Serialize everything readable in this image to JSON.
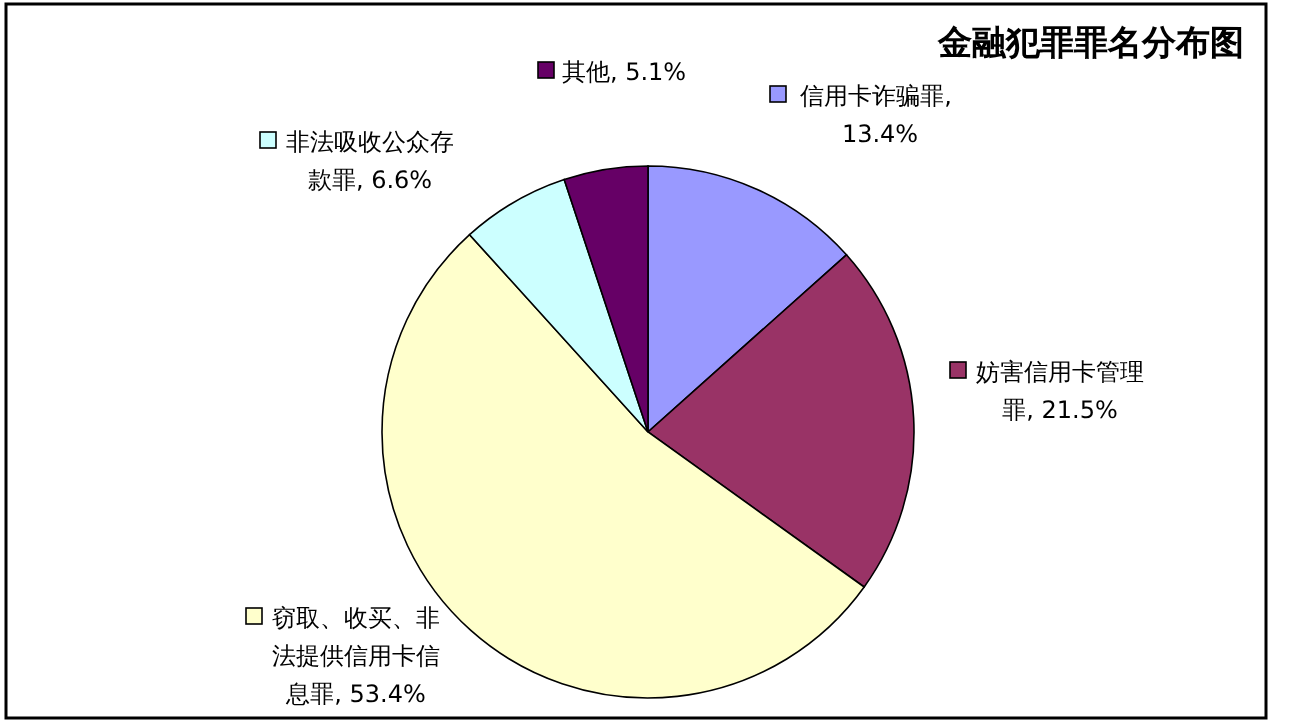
{
  "chart_data": {
    "type": "pie",
    "title": "金融犯罪罪名分布图",
    "categories": [
      "信用卡诈骗罪",
      "妨害信用卡管理罪",
      "窃取、收买、非法提供信用卡信息罪",
      "非法吸收公众存款罪",
      "其他"
    ],
    "values": [
      13.4,
      21.5,
      53.4,
      6.6,
      5.1
    ],
    "colors": [
      "#9999ff",
      "#993366",
      "#ffffcc",
      "#ccffff",
      "#660066"
    ],
    "legend": "top",
    "value_labels": [
      ", 13.4%",
      ", 21.5%",
      ", 53.4%",
      ", 6.6%",
      ", 5.1%"
    ]
  }
}
